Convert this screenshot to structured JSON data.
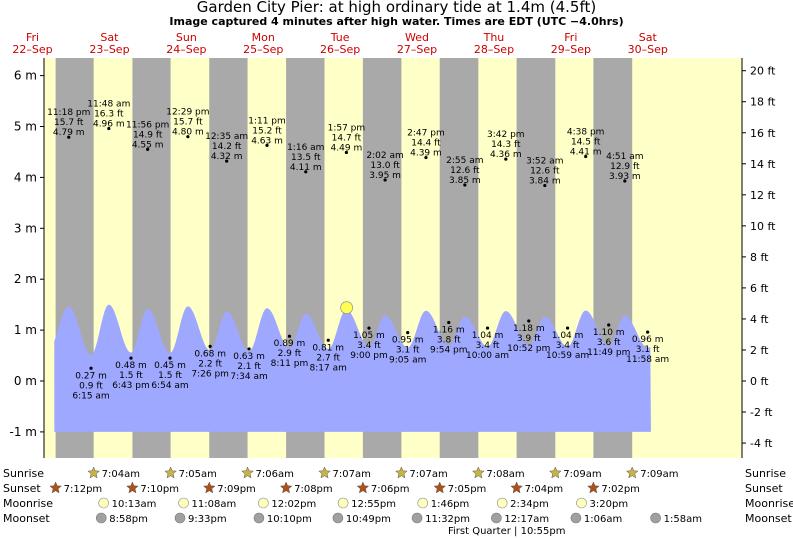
{
  "title": "Garden City Pier: at high  ordinary tide at 1.4m (4.5ft)",
  "subtitle": "Image captured 4 minutes after high water. Times are EDT (UTC −4.0hrs)",
  "row_labels": {
    "sunrise": "Sunrise",
    "sunset": "Sunset",
    "moonrise": "Moonrise",
    "moonset": "Moonset"
  },
  "moon_phase": "First Quarter | 10:55pm",
  "colors": {
    "day": "#ffffc8",
    "night": "#a9a9a9",
    "tide": "#9fa8ff",
    "date_text": "#cc0000",
    "sun_star": "#c8b440",
    "sunset_star": "#b05018",
    "moonrise": "#ffffc0",
    "moonset": "#a0a0a0"
  },
  "chart_data": {
    "type": "area",
    "title": "Garden City Pier: at high  ordinary tide at 1.4m (4.5ft)",
    "left_axis": {
      "unit": "m",
      "range": [
        -1.2,
        6.4
      ],
      "ticks": [
        "-1 m",
        "0 m",
        "1 m",
        "2 m",
        "3 m",
        "4 m",
        "5 m",
        "6 m"
      ]
    },
    "right_axis": {
      "unit": "ft",
      "ticks": [
        "-4 ft",
        "-2 ft",
        "0 ft",
        "2 ft",
        "4 ft",
        "6 ft",
        "8 ft",
        "10 ft",
        "12 ft",
        "14 ft",
        "16 ft",
        "18 ft",
        "20 ft"
      ]
    },
    "days": [
      {
        "dow": "Fri",
        "date": "22–Sep"
      },
      {
        "dow": "Sat",
        "date": "23–Sep"
      },
      {
        "dow": "Sun",
        "date": "24–Sep"
      },
      {
        "dow": "Mon",
        "date": "25–Sep"
      },
      {
        "dow": "Tue",
        "date": "26–Sep"
      },
      {
        "dow": "Wed",
        "date": "27–Sep"
      },
      {
        "dow": "Thu",
        "date": "28–Sep"
      },
      {
        "dow": "Fri",
        "date": "29–Sep"
      },
      {
        "dow": "Sat",
        "date": "30–Sep"
      }
    ],
    "high_tides": [
      {
        "time": "11:18 pm",
        "ft": "15.7 ft",
        "m": "4.79 m"
      },
      {
        "time": "11:48 am",
        "ft": "16.3 ft",
        "m": "4.96 m"
      },
      {
        "time": "11:56 pm",
        "ft": "14.9 ft",
        "m": "4.55 m"
      },
      {
        "time": "12:29 pm",
        "ft": "15.7 ft",
        "m": "4.80 m"
      },
      {
        "time": "12:35 am",
        "ft": "14.2 ft",
        "m": "4.32 m"
      },
      {
        "time": "1:11 pm",
        "ft": "15.2 ft",
        "m": "4.63 m"
      },
      {
        "time": "1:16 am",
        "ft": "13.5 ft",
        "m": "4.11 m"
      },
      {
        "time": "1:57 pm",
        "ft": "14.7 ft",
        "m": "4.49 m"
      },
      {
        "time": "2:02 am",
        "ft": "13.0 ft",
        "m": "3.95 m"
      },
      {
        "time": "2:47 pm",
        "ft": "14.4 ft",
        "m": "4.39 m"
      },
      {
        "time": "2:55 am",
        "ft": "12.6 ft",
        "m": "3.85 m"
      },
      {
        "time": "3:42 pm",
        "ft": "14.3 ft",
        "m": "4.36 m"
      },
      {
        "time": "3:52 am",
        "ft": "12.6 ft",
        "m": "3.84 m"
      },
      {
        "time": "4:38 pm",
        "ft": "14.5 ft",
        "m": "4.41 m"
      },
      {
        "time": "4:51 am",
        "ft": "12.9 ft",
        "m": "3.93 m"
      }
    ],
    "low_tides": [
      {
        "m": "0.27 m",
        "ft": "0.9 ft",
        "time": "6:15 am"
      },
      {
        "m": "0.48 m",
        "ft": "1.5 ft",
        "time": "6:43 pm"
      },
      {
        "m": "0.45 m",
        "ft": "1.5 ft",
        "time": "6:54 am"
      },
      {
        "m": "0.68 m",
        "ft": "2.2 ft",
        "time": "7:26 pm"
      },
      {
        "m": "0.63 m",
        "ft": "2.1 ft",
        "time": "7:34 am"
      },
      {
        "m": "0.89 m",
        "ft": "2.9 ft",
        "time": "8:11 pm"
      },
      {
        "m": "0.81 m",
        "ft": "2.7 ft",
        "time": "8:17 am"
      },
      {
        "m": "1.05 m",
        "ft": "3.4 ft",
        "time": "9:00 pm"
      },
      {
        "m": "0.95 m",
        "ft": "3.1 ft",
        "time": "9:05 am"
      },
      {
        "m": "1.16 m",
        "ft": "3.8 ft",
        "time": "9:54 pm"
      },
      {
        "m": "1.04 m",
        "ft": "3.4 ft",
        "time": "10:00 am"
      },
      {
        "m": "1.18 m",
        "ft": "3.9 ft",
        "time": "10:52 pm"
      },
      {
        "m": "1.04 m",
        "ft": "3.4 ft",
        "time": "10:59 am"
      },
      {
        "m": "1.10 m",
        "ft": "3.6 ft",
        "time": "11:49 pm"
      },
      {
        "m": "0.96 m",
        "ft": "3.1 ft",
        "time": "11:58 am"
      }
    ],
    "sunrise": [
      "7:04am",
      "7:05am",
      "7:06am",
      "7:07am",
      "7:07am",
      "7:08am",
      "7:09am",
      "7:09am"
    ],
    "sunset": [
      "7:12pm",
      "7:10pm",
      "7:09pm",
      "7:08pm",
      "7:06pm",
      "7:05pm",
      "7:04pm",
      "7:02pm"
    ],
    "moonrise": [
      "10:13am",
      "11:08am",
      "12:02pm",
      "12:55pm",
      "1:46pm",
      "2:34pm",
      "3:20pm"
    ],
    "moonset": [
      "8:58pm",
      "9:33pm",
      "10:10pm",
      "10:49pm",
      "11:32pm",
      "12:17am",
      "1:06am",
      "1:58am"
    ]
  }
}
